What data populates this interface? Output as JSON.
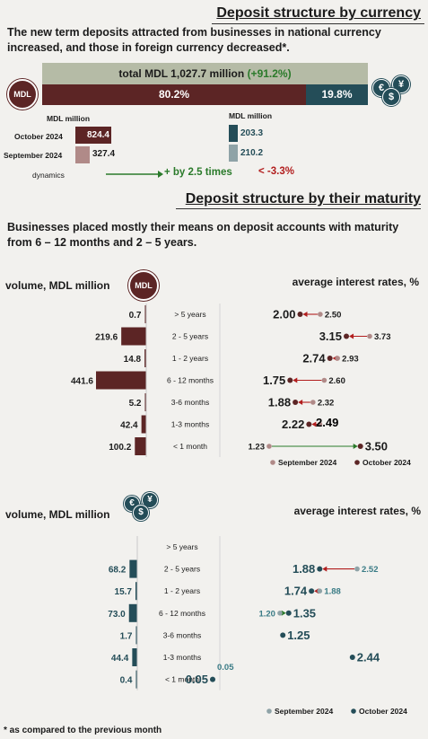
{
  "currency_section": {
    "title": "Deposit structure by currency",
    "lead": "The new term deposits attracted from businesses in national currency increased, and those in foreign currency decreased*.",
    "total_label": "total MDL 1,027.7 million",
    "total_change": "(+91.2%)",
    "mdl_share": "80.2%",
    "fx_share": "19.8%",
    "mdl_coin": "MDL",
    "fx_coin_symbols": [
      "€",
      "¥",
      "$"
    ],
    "unit_mdl": "MDL million",
    "unit_fx": "MDL million",
    "row_labels": [
      "October 2024",
      "September 2024",
      "dynamics"
    ],
    "mdl_values": [
      "824.4",
      "327.4"
    ],
    "fx_values": [
      "203.3",
      "210.2"
    ],
    "mdl_dynamics": "+ by 2.5 times",
    "fx_dynamics": "-3.3%",
    "colors": {
      "mdl": "#5c2525",
      "mdl_light": "#b08a88",
      "fx": "#244d58",
      "fx_light": "#8fa3a7",
      "total_band": "#b5bba6",
      "green": "#2a7a2a",
      "red": "#b21e1e"
    }
  },
  "maturity_section": {
    "title": "Deposit structure by their maturity",
    "lead": "Businesses placed mostly their means on deposit accounts with maturity from 6 – 12 months and 2 – 5 years.",
    "categories": [
      "> 5 years",
      "2 - 5 years",
      "1 - 2 years",
      "6 - 12 months",
      "3-6 months",
      "1-3 months",
      "< 1 month"
    ],
    "legend_sep": "September 2024",
    "legend_oct": "October 2024"
  },
  "chart_data": [
    {
      "type": "bar",
      "title": "volume, MDL million",
      "currency": "MDL",
      "categories": [
        "> 5 years",
        "2 - 5 years",
        "1 - 2 years",
        "6 - 12 months",
        "3-6 months",
        "1-3 months",
        "< 1 month"
      ],
      "values": [
        0.7,
        219.6,
        14.8,
        441.6,
        5.2,
        42.4,
        100.2
      ],
      "labels": [
        "0.7",
        "219.6",
        "14.8",
        "441.6",
        "5.2",
        "42.4",
        "100.2"
      ]
    },
    {
      "type": "scatter",
      "title": "average interest rates, %",
      "currency": "MDL",
      "categories": [
        "> 5 years",
        "2 - 5 years",
        "1 - 2 years",
        "6 - 12 months",
        "3-6 months",
        "1-3 months",
        "< 1 month"
      ],
      "series": [
        {
          "name": "September 2024",
          "values": [
            2.5,
            3.73,
            2.93,
            2.6,
            2.32,
            2.49,
            1.23
          ],
          "labels": [
            "2.50",
            "3.73",
            "2.93",
            "2.60",
            "2.32",
            "",
            "1.23"
          ]
        },
        {
          "name": "October 2024",
          "values": [
            2.0,
            3.15,
            2.74,
            1.75,
            1.88,
            2.22,
            3.5
          ],
          "labels": [
            "2.00",
            "3.15",
            "2.74",
            "1.75",
            "1.88",
            "2.22",
            "3.50"
          ]
        }
      ],
      "extra_label": "2.49"
    },
    {
      "type": "bar",
      "title": "volume, MDL million",
      "currency": "foreign",
      "categories": [
        "> 5 years",
        "2 - 5 years",
        "1 - 2 years",
        "6 - 12 months",
        "3-6 months",
        "1-3 months",
        "< 1 month"
      ],
      "values": [
        null,
        68.2,
        15.7,
        73.0,
        1.7,
        44.4,
        0.4
      ],
      "labels": [
        "",
        "68.2",
        "15.7",
        "73.0",
        "1.7",
        "44.4",
        "0.4"
      ]
    },
    {
      "type": "scatter",
      "title": "average interest rates, %",
      "currency": "foreign",
      "categories": [
        "> 5 years",
        "2 - 5 years",
        "1 - 2 years",
        "6 - 12 months",
        "3-6 months",
        "1-3 months",
        "< 1 month"
      ],
      "series": [
        {
          "name": "September 2024",
          "values": [
            null,
            2.52,
            1.88,
            1.2,
            null,
            null,
            0.05
          ],
          "labels": [
            "",
            "2.52",
            "1.88",
            "1.20",
            "",
            "",
            "0.05"
          ]
        },
        {
          "name": "October 2024",
          "values": [
            null,
            1.88,
            1.74,
            1.35,
            1.25,
            2.44,
            0.05
          ],
          "labels": [
            "",
            "1.88",
            "1.74",
            "1.35",
            "1.25",
            "2.44",
            "0.05"
          ]
        }
      ]
    }
  ],
  "footnote": "* as compared to the previous month"
}
